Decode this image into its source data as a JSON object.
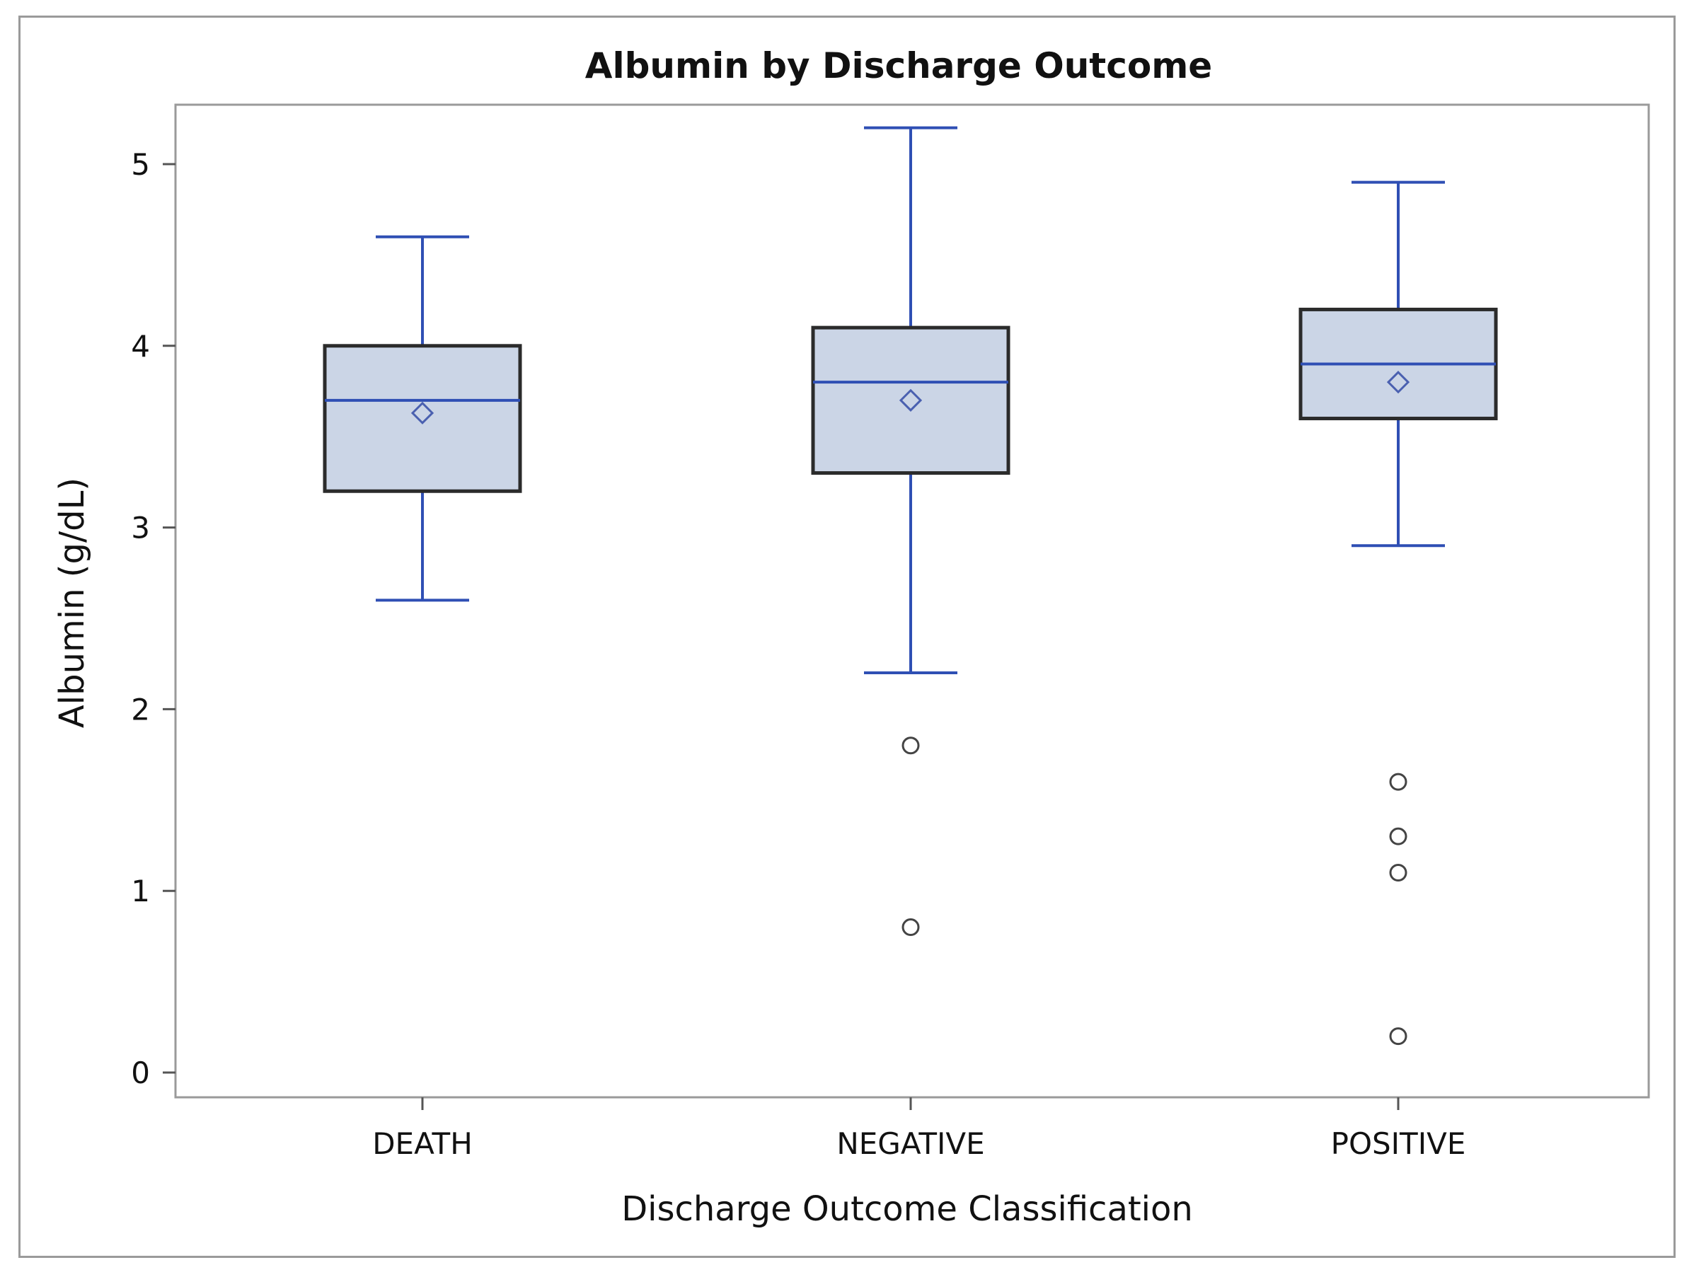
{
  "chart_data": {
    "type": "box",
    "title": "Albumin by Discharge Outcome",
    "xlabel": "Discharge Outcome Classification",
    "ylabel": "Albumin (g/dL)",
    "ylim": [
      0,
      5.2
    ],
    "yticks": [
      0,
      1,
      2,
      3,
      4,
      5
    ],
    "grid": false,
    "categories": [
      "DEATH",
      "NEGATIVE",
      "POSITIVE"
    ],
    "boxes": [
      {
        "category": "DEATH",
        "whisker_low": 2.6,
        "q1": 3.2,
        "median": 3.7,
        "q3": 4.0,
        "whisker_high": 4.6,
        "mean": 3.63,
        "outliers": []
      },
      {
        "category": "NEGATIVE",
        "whisker_low": 2.2,
        "q1": 3.3,
        "median": 3.8,
        "q3": 4.1,
        "whisker_high": 5.2,
        "mean": 3.7,
        "outliers": [
          1.8,
          0.8
        ]
      },
      {
        "category": "POSITIVE",
        "whisker_low": 2.9,
        "q1": 3.6,
        "median": 3.9,
        "q3": 4.2,
        "whisker_high": 4.9,
        "mean": 3.8,
        "outliers": [
          1.6,
          1.3,
          1.1,
          0.2
        ]
      }
    ],
    "colors": {
      "box_fill": "#cbd5e6",
      "box_border": "#2b2b2b",
      "whisker": "#2f4fb4",
      "median": "#2f4fb4",
      "mean_marker": "#4a60b0",
      "outlier": "#444444",
      "axis": "#9a9a9a"
    }
  }
}
